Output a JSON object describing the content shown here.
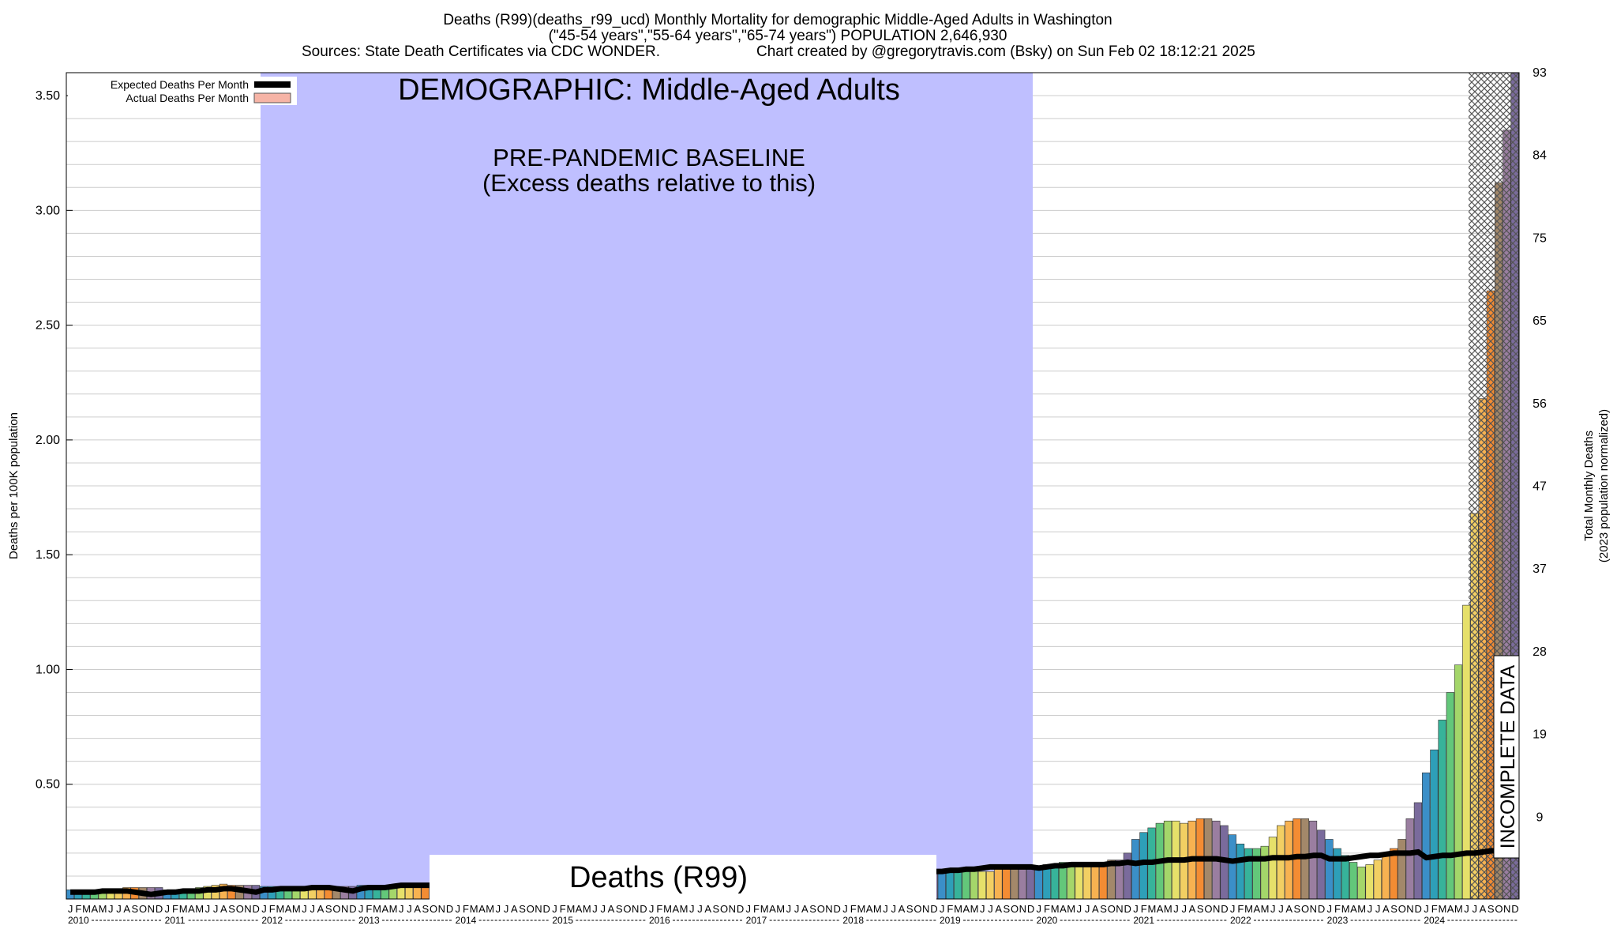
{
  "header": {
    "line1": "Deaths (R99)(deaths_r99_ucd) Monthly Mortality for demographic Middle-Aged Adults in Washington",
    "line2": "(\"45-54 years\",\"55-64 years\",\"65-74 years\") POPULATION 2,646,930",
    "line3_left": "Sources: State Death Certificates via CDC WONDER.",
    "line3_right": "Chart created by @gregorytravis.com (Bsky) on Sun Feb 02 18:12:21 2025"
  },
  "legend": {
    "expected_label": "Expected Deaths Per Month",
    "actual_label": "Actual Deaths Per Month"
  },
  "annotations": {
    "demographic": "DEMOGRAPHIC: Middle-Aged Adults",
    "baseline_line1": "PRE-PANDEMIC BASELINE",
    "baseline_line2": "(Excess deaths relative to this)",
    "cause_box": "Deaths (R99)",
    "incomplete": "INCOMPLETE DATA"
  },
  "colors": {
    "baseline_region": "#bfbfff",
    "expected_line": "#000000",
    "incomplete_hatch": "#555555",
    "grid": "#cccccc",
    "month_palette": [
      "#3b8fc8",
      "#2e9fb8",
      "#37b39a",
      "#63c77a",
      "#a4d66a",
      "#e6e06a",
      "#f2cf63",
      "#f7b251",
      "#f38c33",
      "#a3886a",
      "#9a7ea0",
      "#7a6b9c"
    ]
  },
  "chart_data": {
    "type": "bar",
    "title": "Deaths (R99)(deaths_r99_ucd) Monthly Mortality for demographic Middle-Aged Adults in Washington",
    "ylabel": "Deaths per 100K population",
    "y2label_line1": "Total Monthly Deaths",
    "y2label_line2": "(2023 population normalized)",
    "ylim": [
      0,
      3.6
    ],
    "yticks": [
      0.5,
      1.0,
      1.5,
      2.0,
      2.5,
      3.0,
      3.5
    ],
    "ytick_labels": [
      "0.50",
      "1.00",
      "1.50",
      "2.00",
      "2.50",
      "3.00",
      "3.50"
    ],
    "y2ticks": [
      9,
      19,
      28,
      37,
      47,
      56,
      65,
      75,
      84,
      93
    ],
    "month_letters": [
      "J",
      "F",
      "M",
      "A",
      "M",
      "J",
      "J",
      "A",
      "S",
      "O",
      "N",
      "D"
    ],
    "years": [
      "2010",
      "2011",
      "2012",
      "2013",
      "2014",
      "2015",
      "2016",
      "2017",
      "2018",
      "2019",
      "2020",
      "2021",
      "2022",
      "2023",
      "2024"
    ],
    "baseline_period": [
      "2012-01",
      "2019-12"
    ],
    "incomplete_period": [
      "2024-07",
      "2024-12"
    ],
    "legend_position": "top-left",
    "grid": true,
    "series": [
      {
        "name": "Actual Deaths Per Month",
        "values": [
          0.04,
          0.035,
          0.035,
          0.035,
          0.04,
          0.04,
          0.045,
          0.05,
          0.05,
          0.05,
          0.05,
          0.05,
          0.04,
          0.04,
          0.04,
          0.045,
          0.05,
          0.055,
          0.06,
          0.065,
          0.06,
          0.06,
          0.06,
          0.06,
          0.055,
          0.055,
          0.055,
          0.055,
          0.055,
          0.055,
          0.055,
          0.055,
          0.055,
          0.055,
          0.055,
          0.055,
          0.06,
          0.06,
          0.06,
          0.06,
          0.06,
          0.06,
          0.06,
          0.06,
          0.06,
          0.06,
          0.06,
          0.06,
          0.07,
          0.07,
          0.07,
          0.07,
          0.07,
          0.07,
          0.07,
          0.07,
          0.07,
          0.07,
          0.07,
          0.07,
          0.08,
          0.08,
          0.08,
          0.08,
          0.08,
          0.08,
          0.08,
          0.08,
          0.08,
          0.08,
          0.08,
          0.08,
          0.09,
          0.09,
          0.09,
          0.09,
          0.09,
          0.09,
          0.09,
          0.09,
          0.09,
          0.09,
          0.09,
          0.09,
          0.1,
          0.1,
          0.1,
          0.1,
          0.1,
          0.1,
          0.1,
          0.1,
          0.1,
          0.1,
          0.1,
          0.1,
          0.11,
          0.11,
          0.11,
          0.11,
          0.11,
          0.11,
          0.11,
          0.11,
          0.11,
          0.11,
          0.11,
          0.11,
          0.12,
          0.12,
          0.12,
          0.12,
          0.12,
          0.12,
          0.12,
          0.13,
          0.13,
          0.13,
          0.13,
          0.13,
          0.14,
          0.15,
          0.15,
          0.16,
          0.16,
          0.16,
          0.16,
          0.16,
          0.16,
          0.17,
          0.17,
          0.2,
          0.26,
          0.29,
          0.31,
          0.33,
          0.34,
          0.34,
          0.33,
          0.34,
          0.35,
          0.35,
          0.34,
          0.32,
          0.28,
          0.24,
          0.22,
          0.22,
          0.23,
          0.27,
          0.32,
          0.34,
          0.35,
          0.35,
          0.34,
          0.3,
          0.26,
          0.22,
          0.19,
          0.16,
          0.14,
          0.15,
          0.17,
          0.2,
          0.22,
          0.26,
          0.35,
          0.42,
          0.55,
          0.65,
          0.78,
          0.9,
          1.02,
          1.28,
          1.68,
          2.18,
          2.65,
          3.12,
          3.35,
          3.6
        ]
      },
      {
        "name": "Expected Deaths Per Month",
        "values": [
          0.03,
          0.03,
          0.03,
          0.03,
          0.035,
          0.035,
          0.035,
          0.035,
          0.03,
          0.025,
          0.02,
          0.025,
          0.03,
          0.03,
          0.035,
          0.035,
          0.035,
          0.04,
          0.04,
          0.045,
          0.045,
          0.04,
          0.035,
          0.03,
          0.04,
          0.04,
          0.045,
          0.045,
          0.045,
          0.045,
          0.05,
          0.05,
          0.05,
          0.045,
          0.04,
          0.035,
          0.045,
          0.05,
          0.05,
          0.05,
          0.055,
          0.06,
          0.06,
          0.06,
          0.06,
          0.06,
          0.06,
          0.06,
          0.07,
          0.07,
          0.07,
          0.07,
          0.07,
          0.07,
          0.07,
          0.075,
          0.075,
          0.075,
          0.075,
          0.075,
          0.08,
          0.08,
          0.08,
          0.08,
          0.085,
          0.085,
          0.085,
          0.085,
          0.09,
          0.09,
          0.09,
          0.09,
          0.09,
          0.09,
          0.095,
          0.095,
          0.095,
          0.095,
          0.1,
          0.1,
          0.1,
          0.1,
          0.1,
          0.1,
          0.1,
          0.105,
          0.105,
          0.105,
          0.11,
          0.11,
          0.11,
          0.11,
          0.11,
          0.11,
          0.11,
          0.11,
          0.11,
          0.115,
          0.115,
          0.115,
          0.12,
          0.12,
          0.12,
          0.12,
          0.12,
          0.12,
          0.12,
          0.12,
          0.12,
          0.125,
          0.125,
          0.13,
          0.13,
          0.135,
          0.14,
          0.14,
          0.14,
          0.14,
          0.14,
          0.14,
          0.135,
          0.14,
          0.145,
          0.145,
          0.15,
          0.15,
          0.15,
          0.15,
          0.15,
          0.155,
          0.155,
          0.16,
          0.155,
          0.16,
          0.16,
          0.165,
          0.17,
          0.17,
          0.17,
          0.175,
          0.175,
          0.175,
          0.175,
          0.17,
          0.165,
          0.17,
          0.175,
          0.175,
          0.175,
          0.18,
          0.18,
          0.18,
          0.185,
          0.185,
          0.19,
          0.19,
          0.175,
          0.175,
          0.175,
          0.18,
          0.185,
          0.19,
          0.19,
          0.195,
          0.2,
          0.2,
          0.2,
          0.205,
          0.18,
          0.185,
          0.19,
          0.19,
          0.195,
          0.2,
          0.2,
          0.205,
          0.21,
          0.21,
          0.21,
          0.215
        ]
      }
    ]
  }
}
